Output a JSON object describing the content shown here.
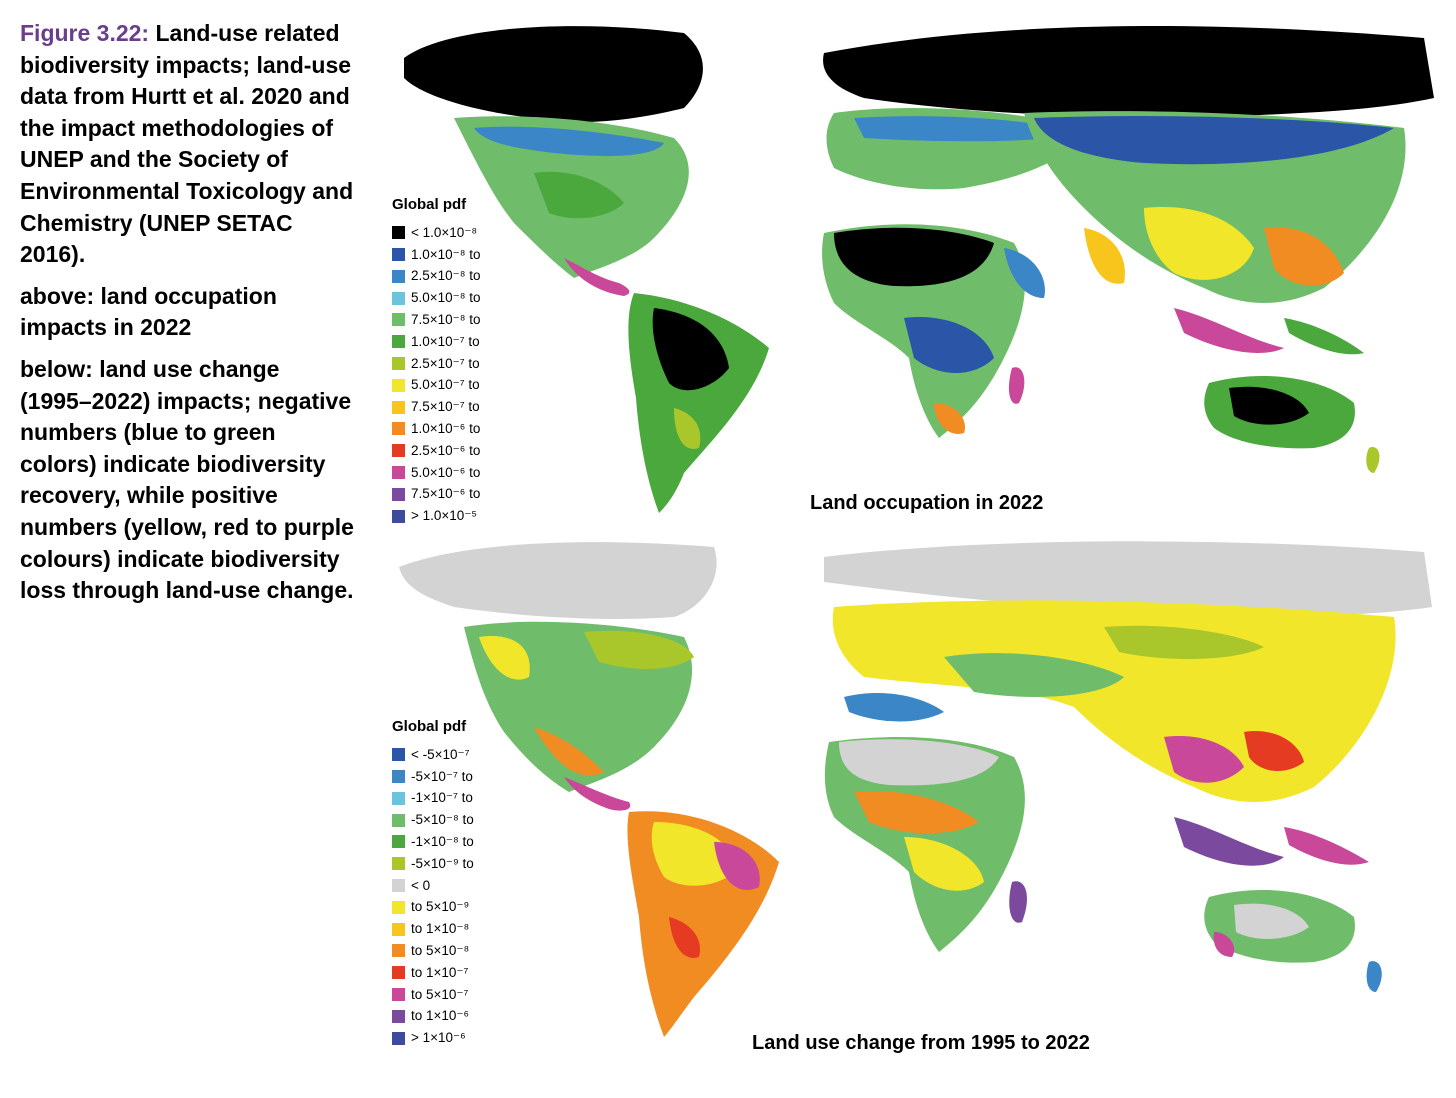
{
  "caption": {
    "figure_label": "Figure 3.22:",
    "main_text": "Land-use related biodiversity impacts; land-use data from Hurtt et al. 2020 and the impact methodologies of UNEP and the Society of Environmental Toxicology and Chemistry (UNEP SETAC 2016).",
    "above_text": "above: land occupation impacts in 2022",
    "below_text": "below: land use change (1995–2022) impacts; negative numbers (blue to green colors) indicate biodiversity recovery, while positive numbers (yellow, red to purple colours) indicate biodiversity loss through land-use change."
  },
  "top_map": {
    "title": "Land occupation in 2022",
    "legend_title": "Global pdf",
    "legend": [
      {
        "label": "< 1.0×10⁻⁸",
        "color": "#000000"
      },
      {
        "label": "1.0×10⁻⁸ to",
        "color": "#2b56a8"
      },
      {
        "label": "2.5×10⁻⁸ to",
        "color": "#3b86c6"
      },
      {
        "label": "5.0×10⁻⁸ to",
        "color": "#6cc3de"
      },
      {
        "label": "7.5×10⁻⁸ to",
        "color": "#6fbd6a"
      },
      {
        "label": "1.0×10⁻⁷ to",
        "color": "#4aa83d"
      },
      {
        "label": "2.5×10⁻⁷ to",
        "color": "#a9c62a"
      },
      {
        "label": "5.0×10⁻⁷ to",
        "color": "#f1e62a"
      },
      {
        "label": "7.5×10⁻⁷ to",
        "color": "#f7c51c"
      },
      {
        "label": "1.0×10⁻⁶ to",
        "color": "#f08c22"
      },
      {
        "label": "2.5×10⁻⁶ to",
        "color": "#e43b22"
      },
      {
        "label": "5.0×10⁻⁶ to",
        "color": "#c9489a"
      },
      {
        "label": "7.5×10⁻⁶ to",
        "color": "#7b4a9e"
      },
      {
        "label": "> 1.0×10⁻⁵",
        "color": "#3e4a9a"
      }
    ]
  },
  "bottom_map": {
    "title": "Land use change from 1995 to 2022",
    "legend_title": "Global pdf",
    "legend": [
      {
        "label": "< -5×10⁻⁷",
        "color": "#2b56a8"
      },
      {
        "label": "-5×10⁻⁷ to",
        "color": "#3b86c6"
      },
      {
        "label": "-1×10⁻⁷ to",
        "color": "#6cc3de"
      },
      {
        "label": "-5×10⁻⁸ to",
        "color": "#6fbd6a"
      },
      {
        "label": "-1×10⁻⁸ to",
        "color": "#4aa83d"
      },
      {
        "label": "-5×10⁻⁹ to",
        "color": "#a9c62a"
      },
      {
        "label": "< 0",
        "color": "#d3d3d3"
      },
      {
        "label": "to 5×10⁻⁹",
        "color": "#f1e62a"
      },
      {
        "label": "to 1×10⁻⁸",
        "color": "#f7c51c"
      },
      {
        "label": "to 5×10⁻⁸",
        "color": "#f08c22"
      },
      {
        "label": "to 1×10⁻⁷",
        "color": "#e43b22"
      },
      {
        "label": "to 5×10⁻⁷",
        "color": "#c9489a"
      },
      {
        "label": "to 1×10⁻⁶",
        "color": "#7b4a9e"
      },
      {
        "label": "> 1×10⁻⁶",
        "color": "#3e4a9a"
      }
    ]
  }
}
